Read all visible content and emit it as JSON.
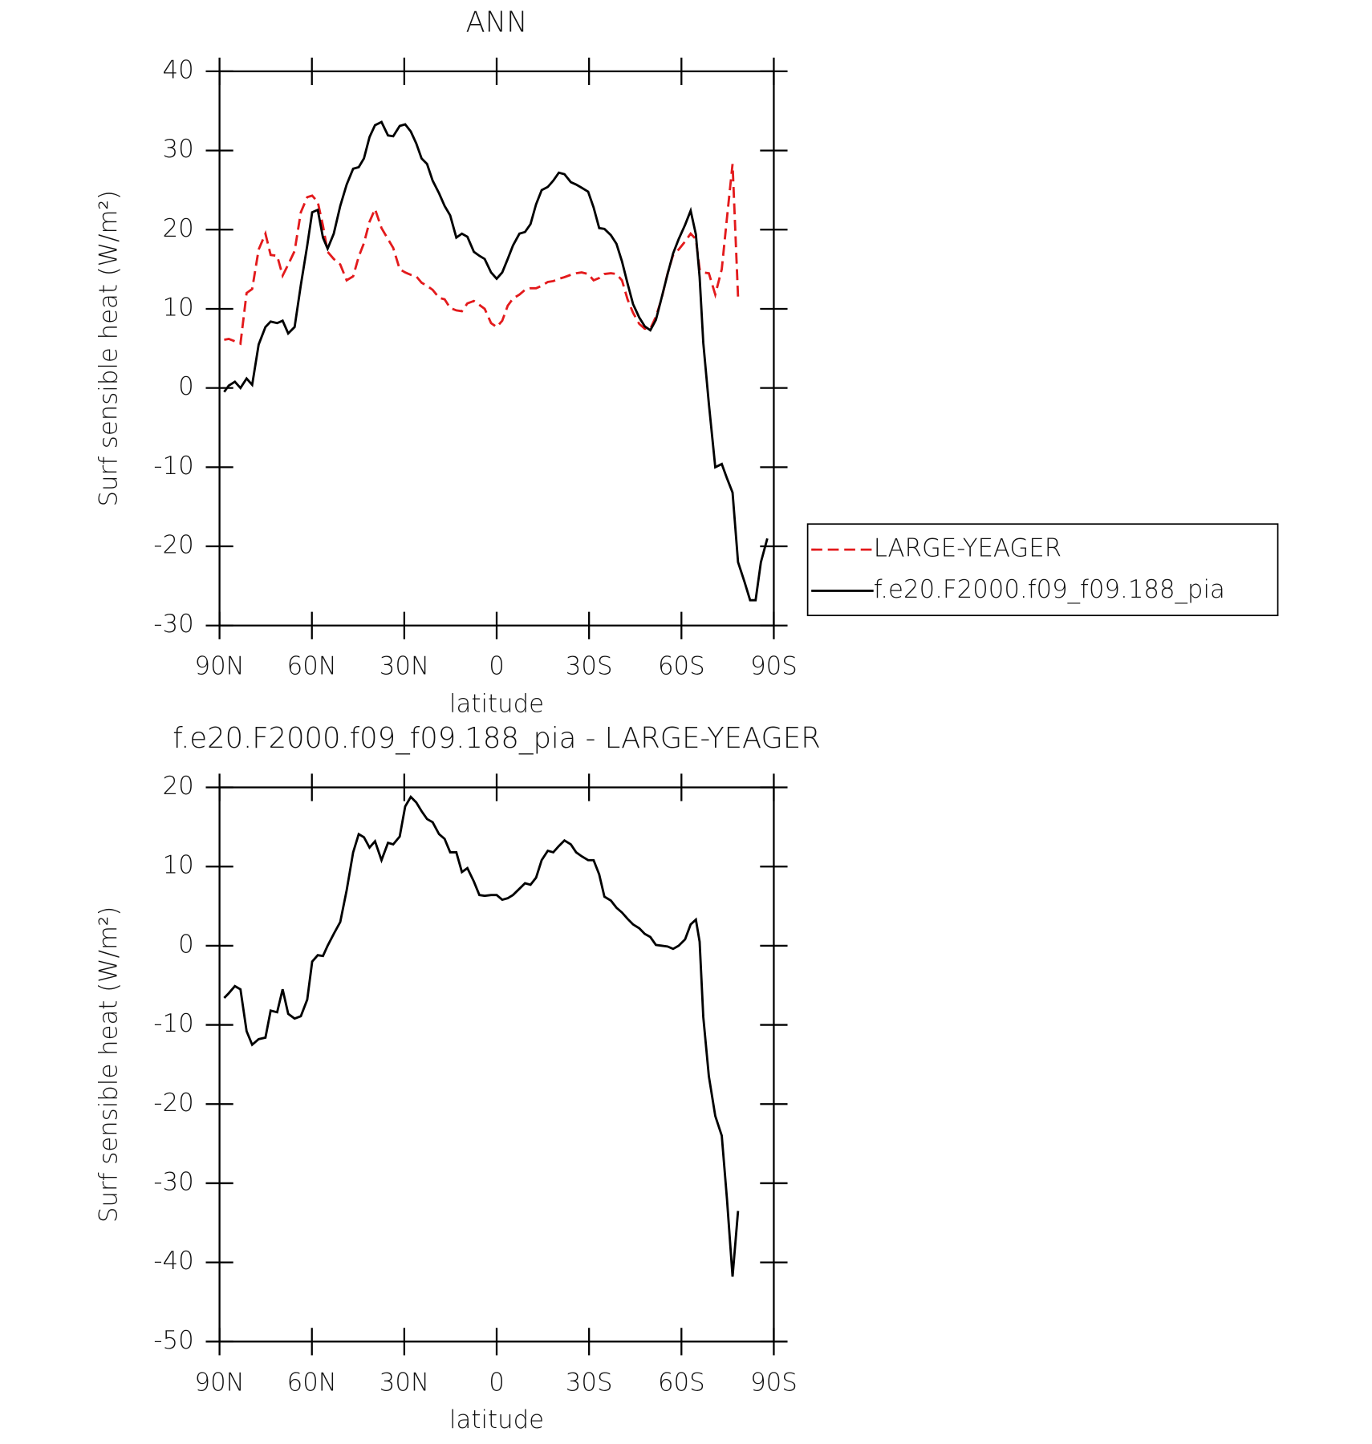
{
  "chart_data": [
    {
      "type": "line",
      "title": "ANN",
      "xlabel": "latitude",
      "ylabel": "Surf sensible heat (W/m²)",
      "x": [
        88.5,
        87.0,
        85.0,
        83.2,
        81.2,
        79.4,
        77.3,
        75.1,
        73.4,
        71.3,
        69.5,
        67.7,
        65.6,
        63.6,
        61.5,
        59.9,
        58.1,
        56.4,
        54.9,
        52.9,
        50.8,
        48.7,
        46.6,
        44.8,
        43.1,
        41.3,
        39.5,
        37.4,
        35.3,
        33.6,
        31.5,
        29.7,
        27.9,
        26.1,
        24.4,
        22.6,
        20.8,
        18.7,
        16.9,
        15.1,
        13.1,
        11.3,
        9.5,
        7.4,
        5.6,
        3.9,
        1.8,
        0,
        -1.8,
        -3.6,
        -5.3,
        -7.4,
        -9.2,
        -11.0,
        -12.8,
        -14.6,
        -16.6,
        -18.4,
        -20.2,
        -22.0,
        -24.1,
        -25.8,
        -27.6,
        -29.7,
        -31.5,
        -33.3,
        -35.0,
        -37.1,
        -38.9,
        -40.7,
        -42.5,
        -44.3,
        -46.3,
        -48.1,
        -49.9,
        -51.7,
        -53.5,
        -55.5,
        -57.3,
        -59.1,
        -61.2,
        -63.0,
        -64.7,
        -65.9,
        -67.1,
        -68.9,
        -71.0,
        -73.1,
        -74.8,
        -76.6,
        -78.4,
        -80.5,
        -82.3,
        -84.1,
        -85.8,
        -87.9
      ],
      "series": [
        {
          "name": "LARGE-YEAGER",
          "color": "#e31a1c",
          "dash": true,
          "values": [
            6.1,
            6.2,
            5.9,
            5.6,
            12,
            12.5,
            17.5,
            19.5,
            16.8,
            16.7,
            14.2,
            15.6,
            17.3,
            22.2,
            24.1,
            24.3,
            23.5,
            20.5,
            17.2,
            16.3,
            15.6,
            13.6,
            14.1,
            16.6,
            18.3,
            21,
            22.6,
            20.2,
            18.8,
            17.7,
            15,
            14.6,
            14.3,
            14.1,
            13.3,
            12.9,
            12.4,
            11.4,
            11.2,
            10.1,
            9.8,
            9.7,
            10.7,
            11,
            10.5,
            10,
            8.2,
            7.7,
            8.5,
            10.4,
            11.3,
            11.8,
            12.4,
            12.6,
            12.6,
            12.9,
            13.4,
            13.5,
            13.8,
            14,
            14.3,
            14.5,
            14.6,
            14.4,
            13.6,
            13.9,
            14.4,
            14.5,
            14.4,
            13.6,
            11.2,
            9.5,
            8.1,
            7.5,
            7.5,
            9,
            11.2,
            14.5,
            16.8,
            17.5,
            18.5,
            19.5,
            18.8,
            15,
            14.6,
            14.5,
            11.8,
            15,
            21.5,
            28.3,
            11.5,
            null,
            null,
            null,
            null,
            null
          ]
        },
        {
          "name": "f.e20.F2000.f09_f09.188_pia",
          "color": "#000000",
          "dash": false,
          "values": [
            -0.5,
            0.3,
            0.8,
            0,
            1.2,
            0.4,
            5.5,
            7.7,
            8.4,
            8.2,
            8.5,
            6.9,
            7.7,
            13,
            18,
            22.2,
            22.5,
            19,
            17.6,
            19.5,
            23,
            25.7,
            27.7,
            27.9,
            29,
            31.7,
            33.2,
            33.6,
            31.9,
            31.8,
            33.1,
            33.3,
            32.4,
            30.9,
            29,
            28.3,
            26.2,
            24.6,
            23,
            21.8,
            19,
            19.5,
            19.1,
            17.2,
            16.7,
            16.3,
            14.6,
            13.8,
            14.6,
            16.3,
            18,
            19.5,
            19.7,
            20.7,
            23.2,
            25,
            25.4,
            26.2,
            27.2,
            27,
            26,
            25.7,
            25.3,
            24.8,
            22.8,
            20.2,
            20.1,
            19.3,
            18.2,
            16,
            13.2,
            10.6,
            8.9,
            7.8,
            7.3,
            8.6,
            11.3,
            14.4,
            17,
            18.8,
            20.6,
            22.4,
            19.4,
            14,
            5.7,
            -2,
            -10,
            -9.6,
            -11.4,
            -13.2,
            -22,
            -24.5,
            -26.8,
            -26.8,
            -22,
            -19
          ]
        }
      ],
      "xlim": [
        90,
        -90
      ],
      "xticks": [
        {
          "value": 90,
          "label": "90N"
        },
        {
          "value": 60,
          "label": "60N"
        },
        {
          "value": 30,
          "label": "30N"
        },
        0,
        {
          "value": -30,
          "label": "30S"
        },
        {
          "value": -60,
          "label": "60S"
        },
        {
          "value": -90,
          "label": "90S"
        }
      ],
      "ylim": [
        -30,
        40
      ],
      "yticks": [
        -30,
        -20,
        -10,
        0,
        10,
        20,
        30,
        40
      ],
      "legend": "right"
    },
    {
      "type": "line",
      "title": "f.e20.F2000.f09_f09.188_pia - LARGE-YEAGER",
      "xlabel": "latitude",
      "ylabel": "Surf sensible heat (W/m²)",
      "x": [
        88.5,
        87.0,
        85.0,
        83.2,
        81.2,
        79.4,
        77.3,
        75.1,
        73.4,
        71.3,
        69.5,
        67.7,
        65.6,
        63.6,
        61.5,
        59.9,
        58.1,
        56.4,
        54.9,
        52.9,
        50.8,
        48.7,
        46.6,
        44.8,
        43.1,
        41.3,
        39.5,
        37.4,
        35.3,
        33.6,
        31.5,
        29.7,
        27.9,
        26.1,
        24.4,
        22.6,
        20.8,
        18.7,
        16.9,
        15.1,
        13.1,
        11.3,
        9.5,
        7.4,
        5.6,
        3.9,
        1.8,
        0,
        -1.8,
        -3.6,
        -5.3,
        -7.4,
        -9.2,
        -11.0,
        -12.8,
        -14.6,
        -16.6,
        -18.4,
        -20.2,
        -22.0,
        -24.1,
        -25.8,
        -27.6,
        -29.7,
        -31.5,
        -33.3,
        -35.0,
        -37.1,
        -38.9,
        -40.7,
        -42.5,
        -44.3,
        -46.3,
        -48.1,
        -49.9,
        -51.7,
        -53.5,
        -55.5,
        -57.3,
        -59.1,
        -61.2,
        -63.0,
        -64.7,
        -65.9,
        -67.1,
        -68.9,
        -71.0,
        -73.1,
        -74.8,
        -76.6,
        -78.4
      ],
      "series": [
        {
          "color": "#000000",
          "dash": false,
          "values": [
            -6.6,
            -6,
            -5.1,
            -5.5,
            -10.8,
            -12.5,
            -11.8,
            -11.6,
            -8.2,
            -8.4,
            -5.5,
            -8.6,
            -9.2,
            -8.9,
            -6.8,
            -2,
            -1.2,
            -1.3,
            0,
            1.5,
            3,
            7,
            11.8,
            14.1,
            13.7,
            12.4,
            13.2,
            10.8,
            13,
            12.8,
            13.8,
            17.6,
            18.8,
            18.1,
            17,
            16,
            15.6,
            14.1,
            13.5,
            11.8,
            11.8,
            9.3,
            9.8,
            8.1,
            6.4,
            6.3,
            6.4,
            6.4,
            5.8,
            6,
            6.4,
            7.2,
            7.9,
            7.7,
            8.6,
            10.8,
            12,
            11.8,
            12.6,
            13.3,
            12.8,
            11.8,
            11.3,
            10.8,
            10.8,
            9,
            6.2,
            5.7,
            4.8,
            4.2,
            3.4,
            2.7,
            2.2,
            1.5,
            1.1,
            0.1,
            0,
            -0.1,
            -0.4,
            0,
            0.8,
            2.7,
            3.3,
            0.5,
            -9,
            -16.5,
            -21.5,
            -24,
            -32,
            -41.8,
            -33.5
          ]
        }
      ],
      "xlim": [
        90,
        -90
      ],
      "xticks": [
        {
          "value": 90,
          "label": "90N"
        },
        {
          "value": 60,
          "label": "60N"
        },
        {
          "value": 30,
          "label": "30N"
        },
        0,
        {
          "value": -30,
          "label": "30S"
        },
        {
          "value": -60,
          "label": "60S"
        },
        {
          "value": -90,
          "label": "90S"
        }
      ],
      "ylim": [
        -50,
        20
      ],
      "yticks": [
        -50,
        -40,
        -30,
        -20,
        -10,
        0,
        10,
        20
      ]
    }
  ]
}
